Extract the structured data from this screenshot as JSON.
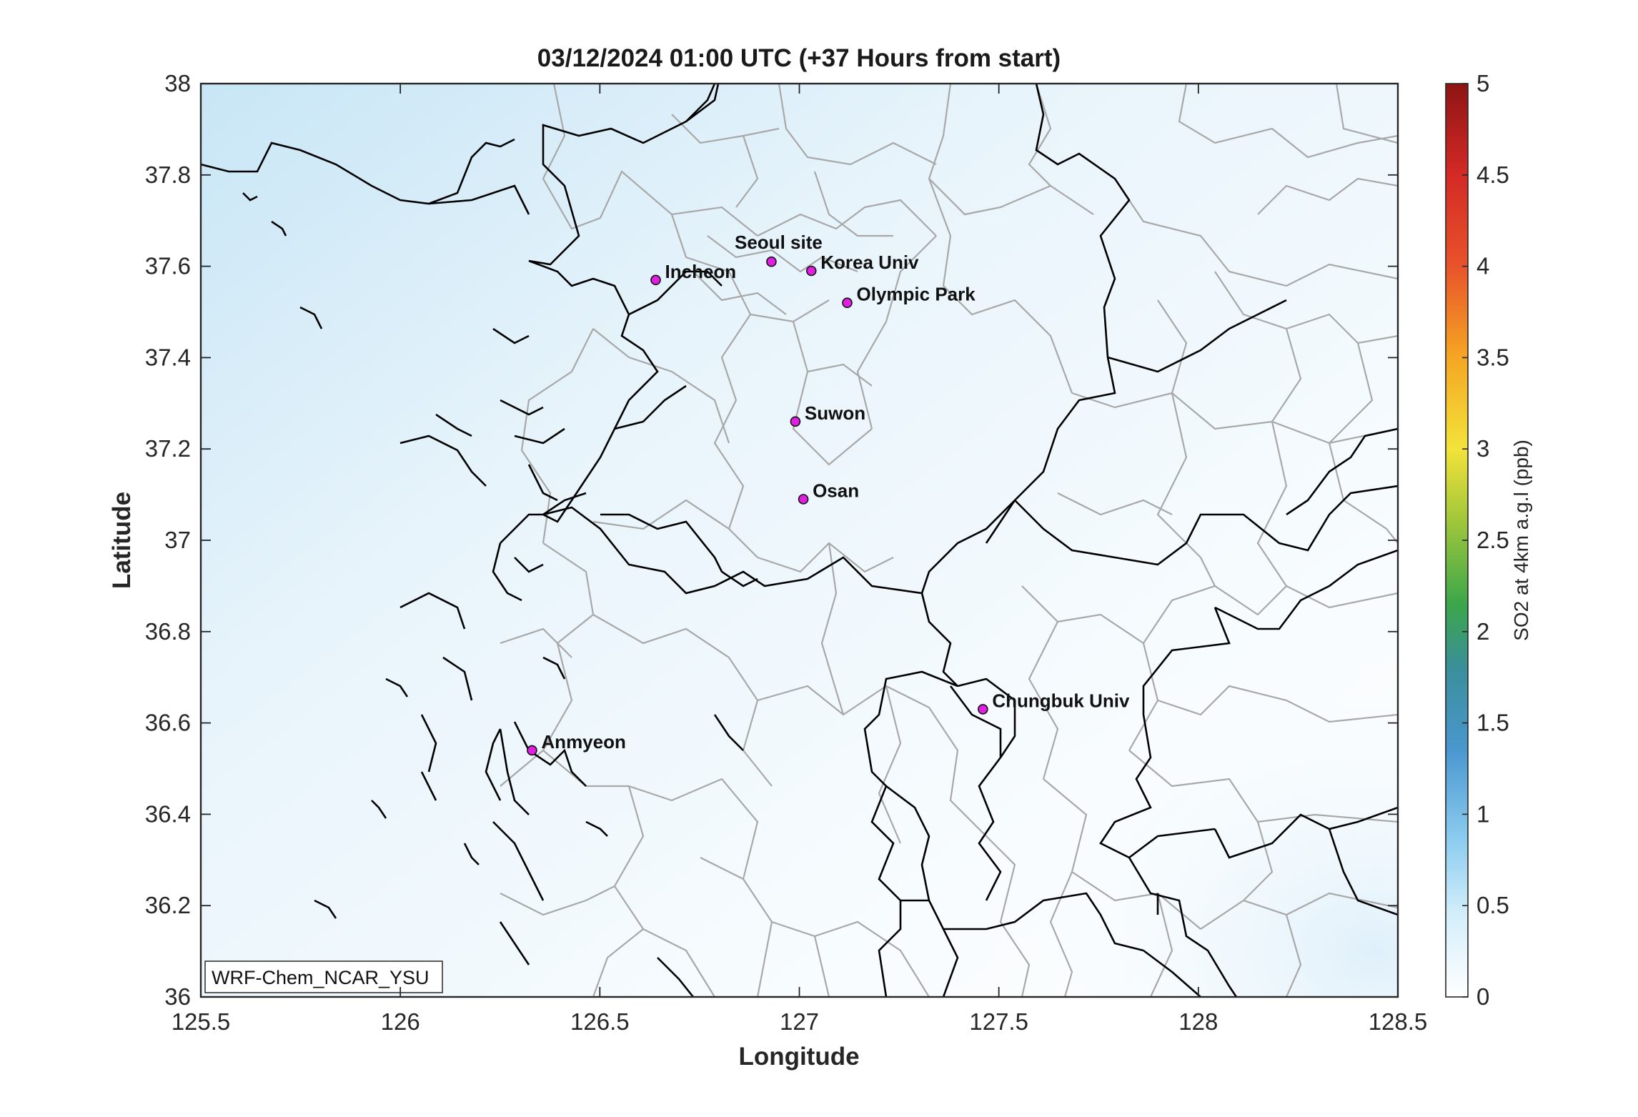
{
  "title": "03/12/2024 01:00 UTC (+37 Hours from start)",
  "xlabel": "Longitude",
  "ylabel": "Latitude",
  "xlim": [
    125.5,
    128.5
  ],
  "ylim": [
    36,
    38
  ],
  "xticks": [
    "125.5",
    "126",
    "126.5",
    "127",
    "127.5",
    "128",
    "128.5"
  ],
  "yticks": [
    "38",
    "37.8",
    "37.6",
    "37.4",
    "37.2",
    "37",
    "36.8",
    "36.6",
    "36.4",
    "36.2",
    "36"
  ],
  "model_label": "WRF-Chem_NCAR_YSU",
  "colorbar": {
    "label": "SO2 at 4km a.g.l (ppb)",
    "range": [
      0,
      5
    ],
    "ticks": [
      "5",
      "4.5",
      "4",
      "3.5",
      "3",
      "2.5",
      "2",
      "1.5",
      "1",
      "0.5",
      "0"
    ],
    "colormap": [
      "#ffffff",
      "#d4eefa",
      "#8dcdf0",
      "#4a97cf",
      "#3a8f9a",
      "#3ba64a",
      "#9fc63b",
      "#f3e33a",
      "#f5a623",
      "#e8532a",
      "#d42a26",
      "#8e1414"
    ]
  },
  "sites": [
    {
      "name": "Seoul site",
      "lon": 126.93,
      "lat": 37.61
    },
    {
      "name": "Korea Univ",
      "lon": 127.03,
      "lat": 37.59
    },
    {
      "name": "Incheon",
      "lon": 126.64,
      "lat": 37.57
    },
    {
      "name": "Olympic Park",
      "lon": 127.12,
      "lat": 37.52
    },
    {
      "name": "Suwon",
      "lon": 126.99,
      "lat": 37.26
    },
    {
      "name": "Osan",
      "lon": 127.01,
      "lat": 37.09
    },
    {
      "name": "Chungbuk Univ",
      "lon": 127.46,
      "lat": 36.63
    },
    {
      "name": "Anmyeon",
      "lon": 126.33,
      "lat": 36.54
    }
  ],
  "marker_color": "#e020e0",
  "field_color_max": "#c9e6f6"
}
